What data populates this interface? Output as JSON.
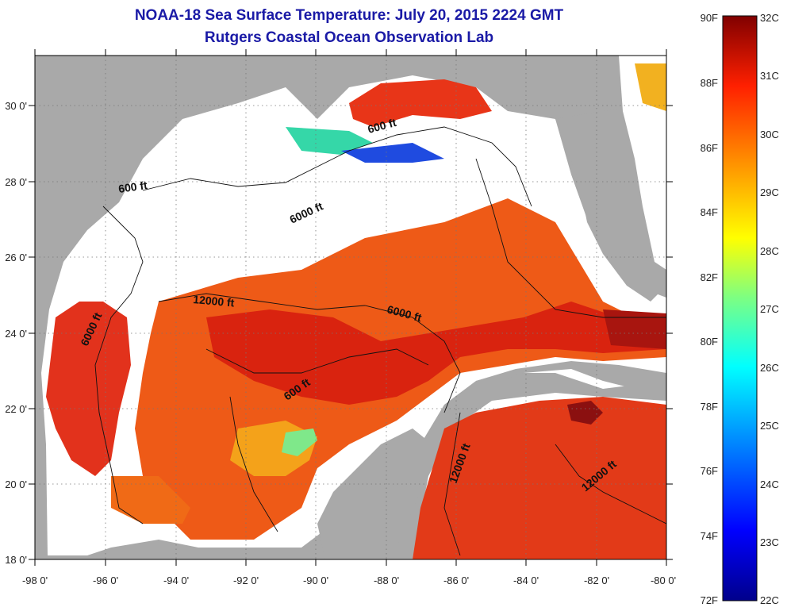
{
  "title": "NOAA-18 Sea Surface Temperature:  July 20, 2015 2224 GMT",
  "subtitle": "Rutgers Coastal Ocean Observation Lab",
  "axes": {
    "lon_ticks": [
      "-98 0'",
      "-96 0'",
      "-94 0'",
      "-92 0'",
      "-90 0'",
      "-88 0'",
      "-86 0'",
      "-84 0'",
      "-82 0'",
      "-80 0'"
    ],
    "lat_ticks": [
      "18 0'",
      "20 0'",
      "22 0'",
      "24 0'",
      "26 0'",
      "28 0'",
      "30 0'"
    ]
  },
  "colorbar": {
    "fahrenheit": [
      "90F",
      "88F",
      "86F",
      "84F",
      "82F",
      "80F",
      "78F",
      "76F",
      "74F",
      "72F"
    ],
    "celsius": [
      "32C",
      "31C",
      "30C",
      "29C",
      "28C",
      "27C",
      "26C",
      "25C",
      "24C",
      "23C",
      "22C"
    ],
    "range_c": [
      22,
      32
    ]
  },
  "contour_labels": [
    "600 ft",
    "600 ft",
    "6000 ft",
    "6000 ft",
    "12000 ft",
    "6000 ft",
    "600 ft",
    "12000 ft",
    "12000 ft"
  ],
  "colors": {
    "land": "#a9a9a9",
    "cloud": "#ffffff",
    "title": "#1a1aa6",
    "warm": "#e8311c",
    "hot": "#a5100f",
    "mild": "#f47a16"
  }
}
